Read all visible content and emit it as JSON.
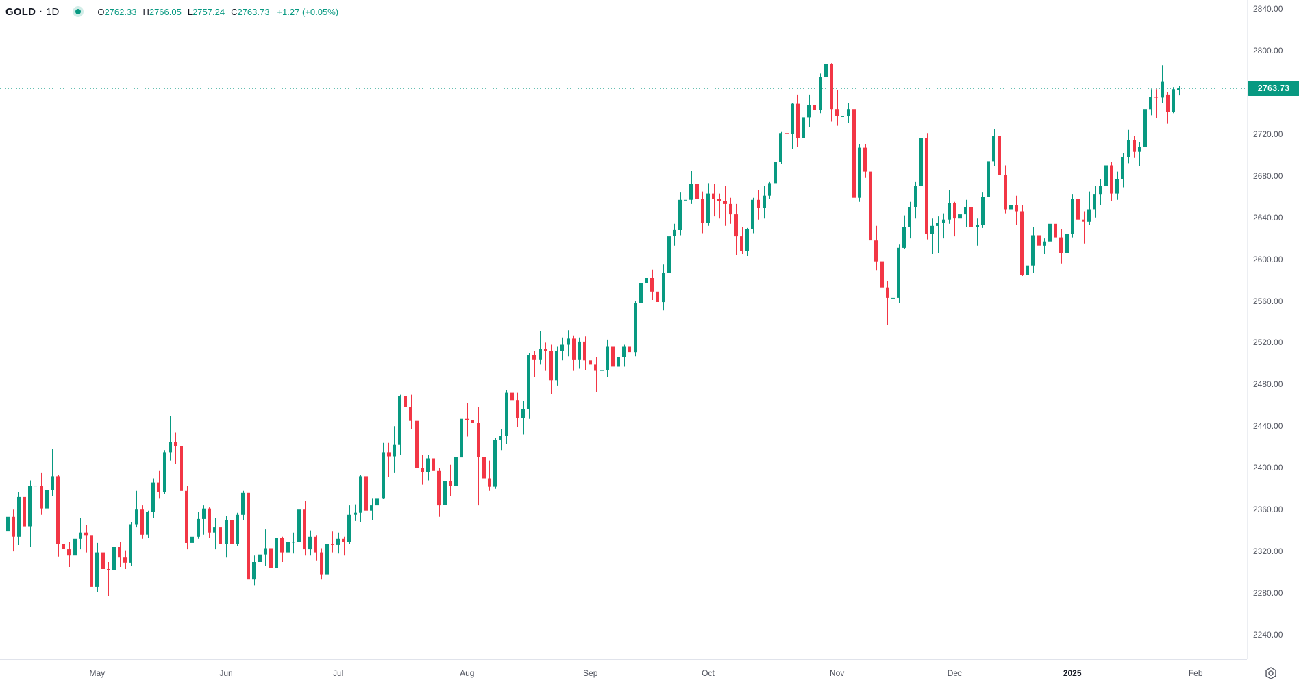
{
  "header": {
    "symbol": "GOLD",
    "separator": "·",
    "timeframe": "1D",
    "ohlc": {
      "o_label": "O",
      "o": "2762.33",
      "h_label": "H",
      "h": "2766.05",
      "l_label": "L",
      "l": "2757.24",
      "c_label": "C",
      "c": "2763.73",
      "change": "+1.27 (+0.05%)"
    }
  },
  "colors": {
    "up": "#089981",
    "down": "#f23645",
    "price_line": "#089981",
    "badge_bg": "#089981",
    "badge_text": "#ffffff",
    "axis_text": "#50535e",
    "axis_border": "#e0e3eb"
  },
  "price_axis": {
    "last_price_label": "2763.73",
    "labels": [
      2840,
      2800,
      2720,
      2680,
      2640,
      2600,
      2560,
      2520,
      2480,
      2440,
      2400,
      2360,
      2320,
      2280,
      2240
    ]
  },
  "time_axis": {
    "labels": [
      {
        "text": "May",
        "bar": 16,
        "bold": false
      },
      {
        "text": "Jun",
        "bar": 39,
        "bold": false
      },
      {
        "text": "Jul",
        "bar": 59,
        "bold": false
      },
      {
        "text": "Aug",
        "bar": 82,
        "bold": false
      },
      {
        "text": "Sep",
        "bar": 104,
        "bold": false
      },
      {
        "text": "Oct",
        "bar": 125,
        "bold": false
      },
      {
        "text": "Nov",
        "bar": 148,
        "bold": false
      },
      {
        "text": "Dec",
        "bar": 169,
        "bold": false
      },
      {
        "text": "2025",
        "bar": 190,
        "bold": true
      },
      {
        "text": "Feb",
        "bar": 212,
        "bold": false
      }
    ]
  },
  "chart_data": {
    "type": "candlestick",
    "title": "GOLD",
    "interval": "1D",
    "last_price": 2763.73,
    "price_line": {
      "value": 2763.73,
      "style": "dotted",
      "color": "#089981"
    },
    "y_axis": {
      "visible_min": 2240,
      "visible_max": 2840,
      "tick_step": 40,
      "grid": false
    },
    "x_axis": {
      "bars": 210,
      "first_month_label": "May",
      "note": "daily bars Apr 2024 - Jan 2025, right margin ~12 bars"
    },
    "candles_format": [
      "open",
      "high",
      "low",
      "close"
    ],
    "candles": [
      [
        2339,
        2365,
        2336,
        2353
      ],
      [
        2353,
        2360,
        2320,
        2334
      ],
      [
        2334,
        2377,
        2326,
        2372
      ],
      [
        2372,
        2431,
        2334,
        2344
      ],
      [
        2344,
        2388,
        2324,
        2383
      ],
      [
        2383,
        2398,
        2363,
        2383
      ],
      [
        2383,
        2395,
        2355,
        2361
      ],
      [
        2361,
        2390,
        2352,
        2379
      ],
      [
        2379,
        2418,
        2373,
        2392
      ],
      [
        2392,
        2393,
        2315,
        2327
      ],
      [
        2327,
        2334,
        2291,
        2322
      ],
      [
        2322,
        2329,
        2305,
        2316
      ],
      [
        2316,
        2340,
        2306,
        2332
      ],
      [
        2332,
        2352,
        2322,
        2338
      ],
      [
        2338,
        2345,
        2319,
        2335
      ],
      [
        2335,
        2339,
        2285,
        2286
      ],
      [
        2286,
        2328,
        2281,
        2319
      ],
      [
        2319,
        2321,
        2295,
        2303
      ],
      [
        2303,
        2310,
        2277,
        2302
      ],
      [
        2302,
        2330,
        2291,
        2324
      ],
      [
        2324,
        2329,
        2305,
        2314
      ],
      [
        2314,
        2321,
        2303,
        2309
      ],
      [
        2309,
        2348,
        2306,
        2346
      ],
      [
        2346,
        2378,
        2343,
        2360
      ],
      [
        2360,
        2364,
        2332,
        2336
      ],
      [
        2336,
        2359,
        2333,
        2358
      ],
      [
        2358,
        2390,
        2352,
        2386
      ],
      [
        2386,
        2397,
        2371,
        2377
      ],
      [
        2377,
        2417,
        2375,
        2415
      ],
      [
        2415,
        2450,
        2407,
        2425
      ],
      [
        2425,
        2434,
        2404,
        2421
      ],
      [
        2421,
        2426,
        2372,
        2378
      ],
      [
        2378,
        2383,
        2322,
        2328
      ],
      [
        2328,
        2347,
        2325,
        2334
      ],
      [
        2334,
        2358,
        2332,
        2351
      ],
      [
        2351,
        2364,
        2336,
        2361
      ],
      [
        2361,
        2362,
        2333,
        2338
      ],
      [
        2338,
        2352,
        2322,
        2343
      ],
      [
        2343,
        2348,
        2320,
        2327
      ],
      [
        2327,
        2354,
        2314,
        2350
      ],
      [
        2350,
        2352,
        2315,
        2327
      ],
      [
        2327,
        2357,
        2325,
        2355
      ],
      [
        2355,
        2378,
        2350,
        2376
      ],
      [
        2376,
        2387,
        2286,
        2293
      ],
      [
        2293,
        2316,
        2287,
        2310
      ],
      [
        2310,
        2322,
        2300,
        2317
      ],
      [
        2317,
        2341,
        2306,
        2323
      ],
      [
        2323,
        2328,
        2296,
        2304
      ],
      [
        2304,
        2336,
        2301,
        2333
      ],
      [
        2333,
        2334,
        2310,
        2319
      ],
      [
        2319,
        2332,
        2306,
        2329
      ],
      [
        2329,
        2338,
        2318,
        2329
      ],
      [
        2329,
        2365,
        2326,
        2360
      ],
      [
        2360,
        2368,
        2316,
        2322
      ],
      [
        2322,
        2340,
        2316,
        2334
      ],
      [
        2334,
        2335,
        2311,
        2319
      ],
      [
        2319,
        2323,
        2293,
        2298
      ],
      [
        2298,
        2330,
        2293,
        2327
      ],
      [
        2327,
        2339,
        2319,
        2326
      ],
      [
        2326,
        2338,
        2318,
        2332
      ],
      [
        2332,
        2334,
        2316,
        2329
      ],
      [
        2329,
        2364,
        2327,
        2355
      ],
      [
        2355,
        2365,
        2349,
        2357
      ],
      [
        2357,
        2393,
        2348,
        2392
      ],
      [
        2392,
        2394,
        2352,
        2359
      ],
      [
        2359,
        2371,
        2350,
        2364
      ],
      [
        2364,
        2390,
        2360,
        2371
      ],
      [
        2371,
        2424,
        2370,
        2415
      ],
      [
        2415,
        2424,
        2391,
        2411
      ],
      [
        2411,
        2440,
        2395,
        2422
      ],
      [
        2422,
        2470,
        2412,
        2469
      ],
      [
        2469,
        2483,
        2453,
        2458
      ],
      [
        2458,
        2470,
        2437,
        2445
      ],
      [
        2445,
        2448,
        2398,
        2400
      ],
      [
        2400,
        2412,
        2384,
        2396
      ],
      [
        2396,
        2412,
        2388,
        2409
      ],
      [
        2409,
        2431,
        2396,
        2397
      ],
      [
        2397,
        2400,
        2353,
        2364
      ],
      [
        2364,
        2390,
        2357,
        2387
      ],
      [
        2387,
        2403,
        2373,
        2383
      ],
      [
        2383,
        2412,
        2378,
        2410
      ],
      [
        2410,
        2450,
        2404,
        2447
      ],
      [
        2447,
        2462,
        2430,
        2446
      ],
      [
        2446,
        2477,
        2411,
        2443
      ],
      [
        2443,
        2458,
        2364,
        2410
      ],
      [
        2410,
        2418,
        2379,
        2390
      ],
      [
        2390,
        2407,
        2378,
        2382
      ],
      [
        2382,
        2429,
        2380,
        2427
      ],
      [
        2427,
        2437,
        2417,
        2431
      ],
      [
        2431,
        2475,
        2423,
        2472
      ],
      [
        2472,
        2477,
        2452,
        2465
      ],
      [
        2465,
        2472,
        2439,
        2448
      ],
      [
        2448,
        2464,
        2432,
        2456
      ],
      [
        2456,
        2510,
        2447,
        2508
      ],
      [
        2508,
        2512,
        2487,
        2504
      ],
      [
        2504,
        2531,
        2499,
        2514
      ],
      [
        2514,
        2520,
        2493,
        2512
      ],
      [
        2512,
        2518,
        2471,
        2484
      ],
      [
        2484,
        2516,
        2479,
        2512
      ],
      [
        2512,
        2525,
        2503,
        2518
      ],
      [
        2518,
        2532,
        2507,
        2524
      ],
      [
        2524,
        2527,
        2493,
        2504
      ],
      [
        2504,
        2525,
        2495,
        2521
      ],
      [
        2521,
        2526,
        2494,
        2503
      ],
      [
        2503,
        2507,
        2488,
        2499
      ],
      [
        2499,
        2506,
        2473,
        2493
      ],
      [
        2493,
        2502,
        2471,
        2494
      ],
      [
        2494,
        2523,
        2487,
        2516
      ],
      [
        2516,
        2529,
        2486,
        2497
      ],
      [
        2497,
        2512,
        2485,
        2506
      ],
      [
        2506,
        2518,
        2497,
        2516
      ],
      [
        2516,
        2529,
        2500,
        2511
      ],
      [
        2511,
        2560,
        2507,
        2558
      ],
      [
        2558,
        2586,
        2556,
        2577
      ],
      [
        2577,
        2589,
        2568,
        2582
      ],
      [
        2582,
        2590,
        2561,
        2569
      ],
      [
        2569,
        2600,
        2546,
        2559
      ],
      [
        2559,
        2595,
        2551,
        2587
      ],
      [
        2587,
        2625,
        2585,
        2622
      ],
      [
        2622,
        2634,
        2613,
        2628
      ],
      [
        2628,
        2664,
        2623,
        2657
      ],
      [
        2657,
        2670,
        2646,
        2657
      ],
      [
        2657,
        2685,
        2653,
        2672
      ],
      [
        2672,
        2676,
        2642,
        2658
      ],
      [
        2658,
        2665,
        2625,
        2635
      ],
      [
        2635,
        2673,
        2632,
        2663
      ],
      [
        2663,
        2672,
        2641,
        2658
      ],
      [
        2658,
        2663,
        2639,
        2656
      ],
      [
        2656,
        2670,
        2632,
        2653
      ],
      [
        2653,
        2659,
        2634,
        2643
      ],
      [
        2643,
        2653,
        2604,
        2622
      ],
      [
        2622,
        2631,
        2605,
        2608
      ],
      [
        2608,
        2630,
        2603,
        2629
      ],
      [
        2629,
        2659,
        2625,
        2657
      ],
      [
        2657,
        2666,
        2638,
        2649
      ],
      [
        2649,
        2670,
        2639,
        2661
      ],
      [
        2661,
        2674,
        2658,
        2673
      ],
      [
        2673,
        2697,
        2668,
        2693
      ],
      [
        2693,
        2722,
        2691,
        2721
      ],
      [
        2721,
        2740,
        2716,
        2720
      ],
      [
        2720,
        2750,
        2706,
        2749
      ],
      [
        2749,
        2758,
        2708,
        2716
      ],
      [
        2716,
        2744,
        2711,
        2736
      ],
      [
        2736,
        2758,
        2727,
        2748
      ],
      [
        2748,
        2752,
        2724,
        2743
      ],
      [
        2743,
        2778,
        2740,
        2775
      ],
      [
        2775,
        2790,
        2765,
        2787
      ],
      [
        2787,
        2788,
        2732,
        2744
      ],
      [
        2744,
        2762,
        2728,
        2737
      ],
      [
        2737,
        2748,
        2724,
        2737
      ],
      [
        2737,
        2750,
        2731,
        2744
      ],
      [
        2744,
        2745,
        2652,
        2659
      ],
      [
        2659,
        2710,
        2655,
        2707
      ],
      [
        2707,
        2710,
        2678,
        2684
      ],
      [
        2684,
        2686,
        2613,
        2618
      ],
      [
        2618,
        2632,
        2589,
        2598
      ],
      [
        2598,
        2609,
        2559,
        2573
      ],
      [
        2573,
        2579,
        2537,
        2563
      ],
      [
        2563,
        2571,
        2546,
        2563
      ],
      [
        2563,
        2614,
        2558,
        2611
      ],
      [
        2611,
        2642,
        2610,
        2631
      ],
      [
        2631,
        2655,
        2620,
        2650
      ],
      [
        2650,
        2674,
        2639,
        2670
      ],
      [
        2670,
        2718,
        2667,
        2716
      ],
      [
        2716,
        2721,
        2619,
        2624
      ],
      [
        2624,
        2639,
        2605,
        2632
      ],
      [
        2632,
        2641,
        2606,
        2635
      ],
      [
        2635,
        2644,
        2620,
        2638
      ],
      [
        2638,
        2666,
        2634,
        2654
      ],
      [
        2654,
        2655,
        2622,
        2639
      ],
      [
        2639,
        2649,
        2633,
        2643
      ],
      [
        2643,
        2657,
        2631,
        2650
      ],
      [
        2650,
        2655,
        2623,
        2631
      ],
      [
        2631,
        2639,
        2613,
        2633
      ],
      [
        2633,
        2664,
        2630,
        2660
      ],
      [
        2660,
        2697,
        2657,
        2694
      ],
      [
        2694,
        2725,
        2689,
        2718
      ],
      [
        2718,
        2726,
        2675,
        2681
      ],
      [
        2681,
        2690,
        2644,
        2648
      ],
      [
        2648,
        2664,
        2639,
        2652
      ],
      [
        2652,
        2661,
        2633,
        2646
      ],
      [
        2646,
        2652,
        2584,
        2585
      ],
      [
        2585,
        2626,
        2581,
        2594
      ],
      [
        2594,
        2631,
        2587,
        2623
      ],
      [
        2623,
        2626,
        2605,
        2613
      ],
      [
        2613,
        2620,
        2605,
        2617
      ],
      [
        2617,
        2639,
        2611,
        2634
      ],
      [
        2634,
        2637,
        2612,
        2621
      ],
      [
        2621,
        2629,
        2596,
        2606
      ],
      [
        2606,
        2625,
        2596,
        2624
      ],
      [
        2624,
        2662,
        2621,
        2658
      ],
      [
        2658,
        2665,
        2632,
        2638
      ],
      [
        2638,
        2646,
        2615,
        2636
      ],
      [
        2636,
        2665,
        2633,
        2648
      ],
      [
        2648,
        2670,
        2640,
        2662
      ],
      [
        2662,
        2677,
        2652,
        2670
      ],
      [
        2670,
        2698,
        2663,
        2690
      ],
      [
        2690,
        2693,
        2656,
        2663
      ],
      [
        2663,
        2684,
        2657,
        2677
      ],
      [
        2677,
        2702,
        2669,
        2698
      ],
      [
        2698,
        2724,
        2692,
        2714
      ],
      [
        2714,
        2718,
        2697,
        2703
      ],
      [
        2703,
        2712,
        2689,
        2708
      ],
      [
        2708,
        2747,
        2702,
        2744
      ],
      [
        2744,
        2763,
        2738,
        2756
      ],
      [
        2756,
        2763,
        2735,
        2755
      ],
      [
        2755,
        2786,
        2750,
        2770
      ],
      [
        2758,
        2760,
        2730,
        2741
      ],
      [
        2741,
        2765,
        2740,
        2763
      ],
      [
        2762.33,
        2766.05,
        2757.24,
        2763.73
      ]
    ]
  }
}
